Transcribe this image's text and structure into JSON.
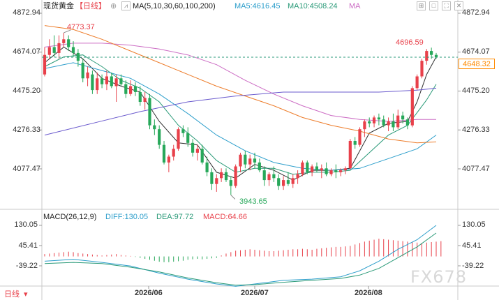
{
  "header": {
    "symbol": "现货黄金",
    "period": "【日线】",
    "ma_label": "MA(5,10,30,60,100,200)",
    "ma5": "MA5:4616.45",
    "ma10": "MA10:4508.24",
    "ma_tail": "MA"
  },
  "macd_header": {
    "label": "MACD(26,12,9)",
    "diff": "DIFF:130.05",
    "dea": "DEA:97.72",
    "macd": "MACD:64.66"
  },
  "footer": {
    "period": "日线",
    "watermark": "FX678"
  },
  "colors": {
    "up": "#e8404a",
    "down": "#27a85a",
    "ma5": "#2e2e2e",
    "ma10": "#2a9a78",
    "ma30": "#2c9ecb",
    "ma60": "#cc6cc4",
    "ma100": "#ed7c2a",
    "ma200": "#6a5acd",
    "price_line": "#2a9a78",
    "ma_tail": "#cc6cc4"
  },
  "chart_data": [
    {
      "type": "candlestick",
      "title": "现货黄金 日线",
      "y_ticks": [
        "4872.94",
        "4674.07",
        "4475.20",
        "4276.33",
        "4077.47"
      ],
      "y_tick_values": [
        4872.94,
        4674.07,
        4475.2,
        4276.33,
        4077.47
      ],
      "ylim": [
        3880,
        4960
      ],
      "x_ticks": [
        "2026/06",
        "2026/07",
        "2026/08"
      ],
      "current_price": "4648.32",
      "annotations": {
        "high": "4773.37",
        "low": "3943.65",
        "recent_high": "4696.59"
      },
      "candles": [
        {
          "o": 4560,
          "h": 4700,
          "l": 4550,
          "c": 4660
        },
        {
          "o": 4660,
          "h": 4740,
          "l": 4640,
          "c": 4700
        },
        {
          "o": 4700,
          "h": 4760,
          "l": 4650,
          "c": 4670
        },
        {
          "o": 4670,
          "h": 4760,
          "l": 4640,
          "c": 4720
        },
        {
          "o": 4720,
          "h": 4773,
          "l": 4700,
          "c": 4740
        },
        {
          "o": 4740,
          "h": 4760,
          "l": 4680,
          "c": 4700
        },
        {
          "o": 4700,
          "h": 4730,
          "l": 4650,
          "c": 4670
        },
        {
          "o": 4670,
          "h": 4690,
          "l": 4600,
          "c": 4630
        },
        {
          "o": 4620,
          "h": 4640,
          "l": 4520,
          "c": 4540
        },
        {
          "o": 4540,
          "h": 4600,
          "l": 4500,
          "c": 4570
        },
        {
          "o": 4560,
          "h": 4580,
          "l": 4460,
          "c": 4480
        },
        {
          "o": 4480,
          "h": 4570,
          "l": 4460,
          "c": 4540
        },
        {
          "o": 4540,
          "h": 4560,
          "l": 4490,
          "c": 4510
        },
        {
          "o": 4510,
          "h": 4580,
          "l": 4480,
          "c": 4550
        },
        {
          "o": 4550,
          "h": 4570,
          "l": 4490,
          "c": 4500
        },
        {
          "o": 4500,
          "h": 4560,
          "l": 4420,
          "c": 4540
        },
        {
          "o": 4540,
          "h": 4560,
          "l": 4500,
          "c": 4510
        },
        {
          "o": 4510,
          "h": 4530,
          "l": 4440,
          "c": 4460
        },
        {
          "o": 4460,
          "h": 4530,
          "l": 4450,
          "c": 4500
        },
        {
          "o": 4500,
          "h": 4520,
          "l": 4450,
          "c": 4470
        },
        {
          "o": 4470,
          "h": 4500,
          "l": 4400,
          "c": 4420
        },
        {
          "o": 4420,
          "h": 4470,
          "l": 4380,
          "c": 4440
        },
        {
          "o": 4440,
          "h": 4460,
          "l": 4280,
          "c": 4300
        },
        {
          "o": 4300,
          "h": 4330,
          "l": 4250,
          "c": 4280
        },
        {
          "o": 4280,
          "h": 4300,
          "l": 4180,
          "c": 4200
        },
        {
          "o": 4200,
          "h": 4220,
          "l": 4100,
          "c": 4110
        },
        {
          "o": 4110,
          "h": 4150,
          "l": 4060,
          "c": 4140
        },
        {
          "o": 4140,
          "h": 4200,
          "l": 4120,
          "c": 4180
        },
        {
          "o": 4180,
          "h": 4290,
          "l": 4170,
          "c": 4280
        },
        {
          "o": 4280,
          "h": 4300,
          "l": 4240,
          "c": 4260
        },
        {
          "o": 4260,
          "h": 4290,
          "l": 4190,
          "c": 4210
        },
        {
          "o": 4210,
          "h": 4230,
          "l": 4140,
          "c": 4160
        },
        {
          "o": 4160,
          "h": 4200,
          "l": 4120,
          "c": 4180
        },
        {
          "o": 4180,
          "h": 4200,
          "l": 4100,
          "c": 4110
        },
        {
          "o": 4110,
          "h": 4140,
          "l": 4040,
          "c": 4060
        },
        {
          "o": 4060,
          "h": 4080,
          "l": 3970,
          "c": 4000
        },
        {
          "o": 4000,
          "h": 4050,
          "l": 3960,
          "c": 4030
        },
        {
          "o": 4030,
          "h": 4080,
          "l": 4010,
          "c": 4060
        },
        {
          "o": 4060,
          "h": 4080,
          "l": 4010,
          "c": 4020
        },
        {
          "o": 4020,
          "h": 4040,
          "l": 3944,
          "c": 3990
        },
        {
          "o": 3990,
          "h": 4100,
          "l": 3980,
          "c": 4090
        },
        {
          "o": 4090,
          "h": 4160,
          "l": 4060,
          "c": 4150
        },
        {
          "o": 4150,
          "h": 4170,
          "l": 4080,
          "c": 4100
        },
        {
          "o": 4100,
          "h": 4150,
          "l": 4070,
          "c": 4130
        },
        {
          "o": 4130,
          "h": 4160,
          "l": 4080,
          "c": 4110
        },
        {
          "o": 4110,
          "h": 4130,
          "l": 4060,
          "c": 4070
        },
        {
          "o": 4070,
          "h": 4090,
          "l": 3990,
          "c": 4020
        },
        {
          "o": 4020,
          "h": 4060,
          "l": 3990,
          "c": 4050
        },
        {
          "o": 4050,
          "h": 4090,
          "l": 4010,
          "c": 4030
        },
        {
          "o": 4030,
          "h": 4050,
          "l": 3970,
          "c": 3990
        },
        {
          "o": 3990,
          "h": 4040,
          "l": 3970,
          "c": 4020
        },
        {
          "o": 4020,
          "h": 4060,
          "l": 3990,
          "c": 4000
        },
        {
          "o": 4000,
          "h": 4050,
          "l": 3980,
          "c": 4030
        },
        {
          "o": 4030,
          "h": 4070,
          "l": 4000,
          "c": 4050
        },
        {
          "o": 4050,
          "h": 4120,
          "l": 4040,
          "c": 4110
        },
        {
          "o": 4110,
          "h": 4120,
          "l": 4050,
          "c": 4060
        },
        {
          "o": 4060,
          "h": 4100,
          "l": 4040,
          "c": 4090
        },
        {
          "o": 4090,
          "h": 4110,
          "l": 4060,
          "c": 4070
        },
        {
          "o": 4070,
          "h": 4100,
          "l": 4030,
          "c": 4080
        },
        {
          "o": 4080,
          "h": 4110,
          "l": 4040,
          "c": 4050
        },
        {
          "o": 4050,
          "h": 4080,
          "l": 4040,
          "c": 4070
        },
        {
          "o": 4070,
          "h": 4100,
          "l": 4030,
          "c": 4060
        },
        {
          "o": 4060,
          "h": 4080,
          "l": 4040,
          "c": 4070
        },
        {
          "o": 4070,
          "h": 4090,
          "l": 4050,
          "c": 4080
        },
        {
          "o": 4080,
          "h": 4230,
          "l": 4075,
          "c": 4220
        },
        {
          "o": 4220,
          "h": 4240,
          "l": 4180,
          "c": 4200
        },
        {
          "o": 4200,
          "h": 4290,
          "l": 4190,
          "c": 4280
        },
        {
          "o": 4280,
          "h": 4330,
          "l": 4240,
          "c": 4320
        },
        {
          "o": 4320,
          "h": 4340,
          "l": 4290,
          "c": 4310
        },
        {
          "o": 4310,
          "h": 4350,
          "l": 4290,
          "c": 4340
        },
        {
          "o": 4340,
          "h": 4360,
          "l": 4300,
          "c": 4330
        },
        {
          "o": 4330,
          "h": 4350,
          "l": 4290,
          "c": 4300
        },
        {
          "o": 4300,
          "h": 4340,
          "l": 4270,
          "c": 4320
        },
        {
          "o": 4320,
          "h": 4360,
          "l": 4270,
          "c": 4290
        },
        {
          "o": 4290,
          "h": 4380,
          "l": 4280,
          "c": 4350
        },
        {
          "o": 4350,
          "h": 4370,
          "l": 4310,
          "c": 4330
        },
        {
          "o": 4330,
          "h": 4340,
          "l": 4280,
          "c": 4300
        },
        {
          "o": 4300,
          "h": 4500,
          "l": 4290,
          "c": 4490
        },
        {
          "o": 4490,
          "h": 4560,
          "l": 4480,
          "c": 4550
        },
        {
          "o": 4550,
          "h": 4640,
          "l": 4540,
          "c": 4630
        },
        {
          "o": 4630,
          "h": 4690,
          "l": 4610,
          "c": 4680
        },
        {
          "o": 4680,
          "h": 4697,
          "l": 4640,
          "c": 4660
        },
        {
          "o": 4660,
          "h": 4670,
          "l": 4640,
          "c": 4648
        }
      ],
      "ma_series": {
        "MA5": [
          [
            0,
            4620
          ],
          [
            4,
            4700
          ],
          [
            8,
            4640
          ],
          [
            12,
            4540
          ],
          [
            16,
            4500
          ],
          [
            20,
            4470
          ],
          [
            24,
            4320
          ],
          [
            28,
            4210
          ],
          [
            32,
            4200
          ],
          [
            36,
            4060
          ],
          [
            40,
            4030
          ],
          [
            44,
            4100
          ],
          [
            48,
            4070
          ],
          [
            52,
            4020
          ],
          [
            56,
            4070
          ],
          [
            60,
            4070
          ],
          [
            64,
            4080
          ],
          [
            68,
            4260
          ],
          [
            72,
            4310
          ],
          [
            76,
            4320
          ],
          [
            78,
            4420
          ],
          [
            80,
            4560
          ],
          [
            82,
            4650
          ]
        ],
        "MA10": [
          [
            0,
            4600
          ],
          [
            4,
            4650
          ],
          [
            8,
            4660
          ],
          [
            12,
            4600
          ],
          [
            16,
            4530
          ],
          [
            20,
            4490
          ],
          [
            24,
            4420
          ],
          [
            28,
            4300
          ],
          [
            32,
            4220
          ],
          [
            36,
            4120
          ],
          [
            40,
            4060
          ],
          [
            44,
            4080
          ],
          [
            48,
            4080
          ],
          [
            52,
            4050
          ],
          [
            56,
            4060
          ],
          [
            60,
            4060
          ],
          [
            64,
            4070
          ],
          [
            68,
            4160
          ],
          [
            72,
            4250
          ],
          [
            76,
            4300
          ],
          [
            80,
            4430
          ],
          [
            82,
            4510
          ]
        ],
        "MA30": [
          [
            0,
            4590
          ],
          [
            6,
            4620
          ],
          [
            12,
            4580
          ],
          [
            18,
            4540
          ],
          [
            24,
            4460
          ],
          [
            30,
            4360
          ],
          [
            36,
            4250
          ],
          [
            42,
            4170
          ],
          [
            48,
            4110
          ],
          [
            54,
            4080
          ],
          [
            60,
            4070
          ],
          [
            66,
            4080
          ],
          [
            72,
            4130
          ],
          [
            78,
            4180
          ],
          [
            82,
            4250
          ]
        ],
        "MA60": [
          [
            0,
            4700
          ],
          [
            6,
            4720
          ],
          [
            12,
            4720
          ],
          [
            18,
            4710
          ],
          [
            24,
            4690
          ],
          [
            30,
            4660
          ],
          [
            36,
            4610
          ],
          [
            42,
            4530
          ],
          [
            48,
            4460
          ],
          [
            54,
            4400
          ],
          [
            60,
            4350
          ],
          [
            66,
            4330
          ],
          [
            72,
            4320
          ],
          [
            78,
            4330
          ],
          [
            82,
            4330
          ]
        ],
        "MA100": [
          [
            0,
            4810
          ],
          [
            6,
            4790
          ],
          [
            12,
            4740
          ],
          [
            18,
            4680
          ],
          [
            24,
            4620
          ],
          [
            30,
            4560
          ],
          [
            36,
            4500
          ],
          [
            42,
            4450
          ],
          [
            48,
            4400
          ],
          [
            54,
            4340
          ],
          [
            60,
            4300
          ],
          [
            66,
            4270
          ],
          [
            72,
            4230
          ],
          [
            78,
            4210
          ],
          [
            82,
            4215
          ]
        ],
        "MA200": [
          [
            0,
            4250
          ],
          [
            10,
            4310
          ],
          [
            20,
            4370
          ],
          [
            30,
            4420
          ],
          [
            40,
            4450
          ],
          [
            50,
            4470
          ],
          [
            60,
            4470
          ],
          [
            70,
            4470
          ],
          [
            78,
            4480
          ],
          [
            82,
            4490
          ]
        ]
      }
    },
    {
      "type": "macd",
      "title": "MACD(26,12,9)",
      "y_ticks": [
        "130.05",
        "45.41",
        "-39.22"
      ],
      "y_tick_values": [
        130.05,
        45.41,
        -39.22
      ],
      "ylim": [
        -130,
        140
      ],
      "x_ticks": [
        "2026/06",
        "2026/07",
        "2026/08"
      ],
      "diff": [
        [
          0,
          -20
        ],
        [
          6,
          -12
        ],
        [
          12,
          -25
        ],
        [
          18,
          -40
        ],
        [
          24,
          -70
        ],
        [
          30,
          -95
        ],
        [
          36,
          -115
        ],
        [
          40,
          -125
        ],
        [
          44,
          -115
        ],
        [
          50,
          -100
        ],
        [
          56,
          -95
        ],
        [
          62,
          -85
        ],
        [
          66,
          -60
        ],
        [
          70,
          -20
        ],
        [
          74,
          30
        ],
        [
          78,
          70
        ],
        [
          82,
          130
        ]
      ],
      "dea": [
        [
          0,
          -30
        ],
        [
          6,
          -25
        ],
        [
          12,
          -30
        ],
        [
          18,
          -45
        ],
        [
          24,
          -65
        ],
        [
          30,
          -90
        ],
        [
          36,
          -110
        ],
        [
          40,
          -120
        ],
        [
          44,
          -118
        ],
        [
          50,
          -108
        ],
        [
          56,
          -100
        ],
        [
          62,
          -92
        ],
        [
          66,
          -78
        ],
        [
          70,
          -50
        ],
        [
          74,
          -5
        ],
        [
          78,
          40
        ],
        [
          82,
          98
        ]
      ],
      "histogram": [
        10,
        12,
        14,
        16,
        18,
        20,
        18,
        14,
        12,
        10,
        8,
        6,
        4,
        6,
        8,
        10,
        6,
        4,
        2,
        -2,
        -6,
        -10,
        -14,
        -18,
        -22,
        -24,
        -24,
        -22,
        -20,
        -18,
        -14,
        -12,
        -10,
        -12,
        -10,
        -8,
        -6,
        4,
        12,
        18,
        24,
        26,
        28,
        30,
        28,
        26,
        24,
        22,
        22,
        24,
        26,
        28,
        30,
        30,
        32,
        30,
        28,
        32,
        34,
        36,
        38,
        40,
        40,
        42,
        44,
        50,
        56,
        62,
        66,
        70,
        74,
        72,
        70,
        68,
        66,
        64,
        62,
        60,
        58,
        56,
        58,
        60,
        62,
        64
      ]
    }
  ]
}
